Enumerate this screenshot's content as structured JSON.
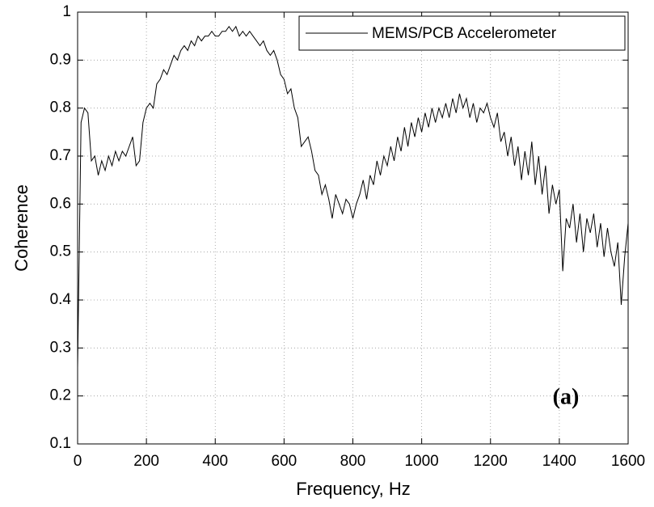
{
  "chart_data": {
    "type": "line",
    "xlabel": "Frequency, Hz",
    "ylabel": "Coherence",
    "annotation": "(a)",
    "x": [
      0,
      10,
      20,
      30,
      40,
      50,
      60,
      70,
      80,
      90,
      100,
      110,
      120,
      130,
      140,
      150,
      160,
      170,
      180,
      190,
      200,
      210,
      220,
      230,
      240,
      250,
      260,
      270,
      280,
      290,
      300,
      310,
      320,
      330,
      340,
      350,
      360,
      370,
      380,
      390,
      400,
      410,
      420,
      430,
      440,
      450,
      460,
      470,
      480,
      490,
      500,
      510,
      520,
      530,
      540,
      550,
      560,
      570,
      580,
      590,
      600,
      610,
      620,
      630,
      640,
      650,
      660,
      670,
      680,
      690,
      700,
      710,
      720,
      730,
      740,
      750,
      760,
      770,
      780,
      790,
      800,
      810,
      820,
      830,
      840,
      850,
      860,
      870,
      880,
      890,
      900,
      910,
      920,
      930,
      940,
      950,
      960,
      970,
      980,
      990,
      1000,
      1010,
      1020,
      1030,
      1040,
      1050,
      1060,
      1070,
      1080,
      1090,
      1100,
      1110,
      1120,
      1130,
      1140,
      1150,
      1160,
      1170,
      1180,
      1190,
      1200,
      1210,
      1220,
      1230,
      1240,
      1250,
      1260,
      1270,
      1280,
      1290,
      1300,
      1310,
      1320,
      1330,
      1340,
      1350,
      1360,
      1370,
      1380,
      1390,
      1400,
      1410,
      1420,
      1430,
      1440,
      1450,
      1460,
      1470,
      1480,
      1490,
      1500,
      1510,
      1520,
      1530,
      1540,
      1550,
      1560,
      1570,
      1580,
      1590,
      1600
    ],
    "series": [
      {
        "name": "MEMS/PCB Accelerometer",
        "color": "#000000",
        "values": [
          0.26,
          0.77,
          0.8,
          0.79,
          0.69,
          0.7,
          0.66,
          0.69,
          0.67,
          0.7,
          0.68,
          0.71,
          0.69,
          0.71,
          0.7,
          0.72,
          0.74,
          0.68,
          0.69,
          0.77,
          0.8,
          0.81,
          0.8,
          0.85,
          0.86,
          0.88,
          0.87,
          0.89,
          0.91,
          0.9,
          0.92,
          0.93,
          0.92,
          0.94,
          0.93,
          0.95,
          0.94,
          0.95,
          0.95,
          0.96,
          0.95,
          0.95,
          0.96,
          0.96,
          0.97,
          0.96,
          0.97,
          0.95,
          0.96,
          0.95,
          0.96,
          0.95,
          0.94,
          0.93,
          0.94,
          0.92,
          0.91,
          0.92,
          0.9,
          0.87,
          0.86,
          0.83,
          0.84,
          0.8,
          0.78,
          0.72,
          0.73,
          0.74,
          0.71,
          0.67,
          0.66,
          0.62,
          0.64,
          0.61,
          0.57,
          0.62,
          0.6,
          0.58,
          0.61,
          0.6,
          0.57,
          0.6,
          0.62,
          0.65,
          0.61,
          0.66,
          0.64,
          0.69,
          0.66,
          0.7,
          0.68,
          0.72,
          0.69,
          0.74,
          0.71,
          0.76,
          0.72,
          0.77,
          0.74,
          0.78,
          0.75,
          0.79,
          0.76,
          0.8,
          0.77,
          0.8,
          0.78,
          0.81,
          0.78,
          0.82,
          0.79,
          0.83,
          0.8,
          0.82,
          0.78,
          0.81,
          0.77,
          0.8,
          0.79,
          0.81,
          0.78,
          0.76,
          0.79,
          0.73,
          0.75,
          0.7,
          0.74,
          0.68,
          0.72,
          0.65,
          0.71,
          0.66,
          0.73,
          0.64,
          0.7,
          0.62,
          0.68,
          0.58,
          0.64,
          0.6,
          0.63,
          0.46,
          0.57,
          0.55,
          0.6,
          0.52,
          0.58,
          0.5,
          0.57,
          0.54,
          0.58,
          0.51,
          0.56,
          0.49,
          0.55,
          0.5,
          0.47,
          0.52,
          0.39,
          0.49,
          0.56
        ]
      }
    ],
    "xlim": [
      0,
      1600
    ],
    "xticks": [
      0,
      200,
      400,
      600,
      800,
      1000,
      1200,
      1400,
      1600
    ],
    "ylim": [
      0.1,
      1
    ],
    "yticks": [
      0.1,
      0.2,
      0.3,
      0.4,
      0.5,
      0.6,
      0.7,
      0.8,
      0.9,
      1
    ],
    "grid": true,
    "legend": "upper right"
  }
}
